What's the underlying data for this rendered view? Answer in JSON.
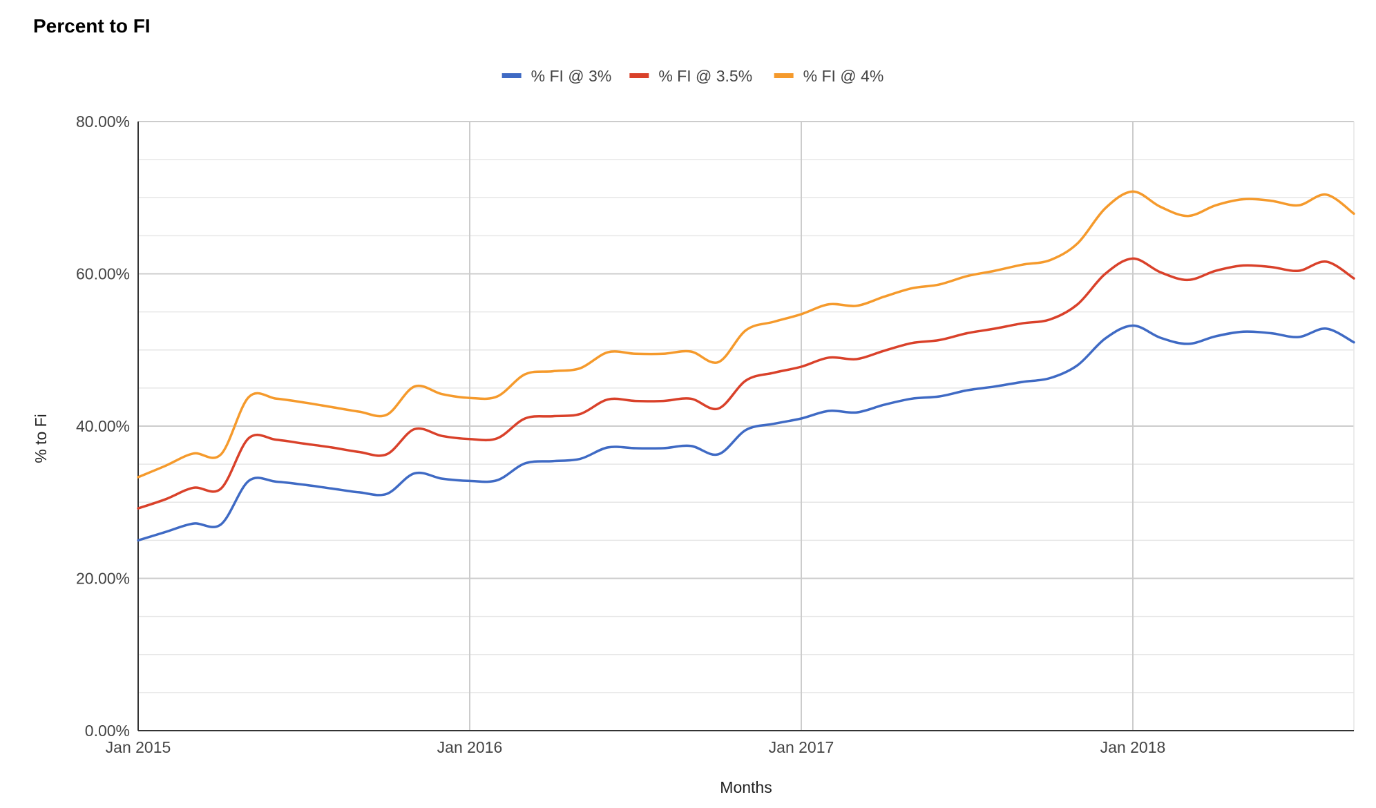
{
  "chart_data": {
    "type": "line",
    "title": "Percent to FI",
    "xlabel": "Months",
    "ylabel": "% to Fi",
    "ylim": [
      0,
      80
    ],
    "y_ticks": [
      0,
      20,
      40,
      60,
      80
    ],
    "y_tick_labels": [
      "0.00%",
      "20.00%",
      "40.00%",
      "60.00%",
      "80.00%"
    ],
    "x_range": [
      "2015-01",
      "2018-09"
    ],
    "x_ticks": [
      "2015-01",
      "2016-01",
      "2017-01",
      "2018-01"
    ],
    "x_tick_labels": [
      "Jan 2015",
      "Jan 2016",
      "Jan 2017",
      "Jan 2018"
    ],
    "legend_position": "top",
    "grid": true,
    "x": [
      "2015-01",
      "2015-02",
      "2015-03",
      "2015-04",
      "2015-05",
      "2015-06",
      "2015-07",
      "2015-08",
      "2015-09",
      "2015-10",
      "2015-11",
      "2015-12",
      "2016-01",
      "2016-02",
      "2016-03",
      "2016-04",
      "2016-05",
      "2016-06",
      "2016-07",
      "2016-08",
      "2016-09",
      "2016-10",
      "2016-11",
      "2016-12",
      "2017-01",
      "2017-02",
      "2017-03",
      "2017-04",
      "2017-05",
      "2017-06",
      "2017-07",
      "2017-08",
      "2017-09",
      "2017-10",
      "2017-11",
      "2017-12",
      "2018-01",
      "2018-02",
      "2018-03",
      "2018-04",
      "2018-05",
      "2018-06",
      "2018-07",
      "2018-08",
      "2018-09"
    ],
    "series": [
      {
        "name": "% FI @ 3%",
        "color": "#3f6ac4",
        "values": [
          25.0,
          26.1,
          27.2,
          27.1,
          32.8,
          32.7,
          32.3,
          31.8,
          31.3,
          31.1,
          33.8,
          33.1,
          32.8,
          32.9,
          35.1,
          35.4,
          35.7,
          37.2,
          37.1,
          37.1,
          37.4,
          36.3,
          39.5,
          40.3,
          41.0,
          42.0,
          41.8,
          42.8,
          43.6,
          43.9,
          44.7,
          45.2,
          45.8,
          46.3,
          48.0,
          51.5,
          53.2,
          51.6,
          50.8,
          51.8,
          52.4,
          52.2,
          51.7,
          52.8,
          51.0
        ]
      },
      {
        "name": "% FI @ 3.5%",
        "color": "#d9412a",
        "values": [
          29.2,
          30.4,
          31.9,
          31.8,
          38.4,
          38.2,
          37.7,
          37.2,
          36.6,
          36.3,
          39.6,
          38.7,
          38.3,
          38.4,
          41.0,
          41.3,
          41.6,
          43.5,
          43.3,
          43.3,
          43.6,
          42.3,
          46.0,
          47.0,
          47.8,
          49.0,
          48.8,
          49.9,
          50.9,
          51.3,
          52.2,
          52.8,
          53.5,
          54.0,
          56.0,
          60.0,
          62.0,
          60.2,
          59.2,
          60.4,
          61.1,
          60.9,
          60.4,
          61.6,
          59.4
        ]
      },
      {
        "name": "% FI @ 4%",
        "color": "#f59a2c",
        "values": [
          33.3,
          34.8,
          36.4,
          36.3,
          43.8,
          43.6,
          43.1,
          42.5,
          41.9,
          41.5,
          45.2,
          44.2,
          43.7,
          43.9,
          46.8,
          47.2,
          47.6,
          49.7,
          49.5,
          49.5,
          49.8,
          48.4,
          52.6,
          53.7,
          54.7,
          56.0,
          55.8,
          57.0,
          58.1,
          58.6,
          59.7,
          60.4,
          61.2,
          61.8,
          64.0,
          68.6,
          70.8,
          68.8,
          67.6,
          69.0,
          69.8,
          69.6,
          69.0,
          70.4,
          67.9
        ]
      }
    ]
  }
}
